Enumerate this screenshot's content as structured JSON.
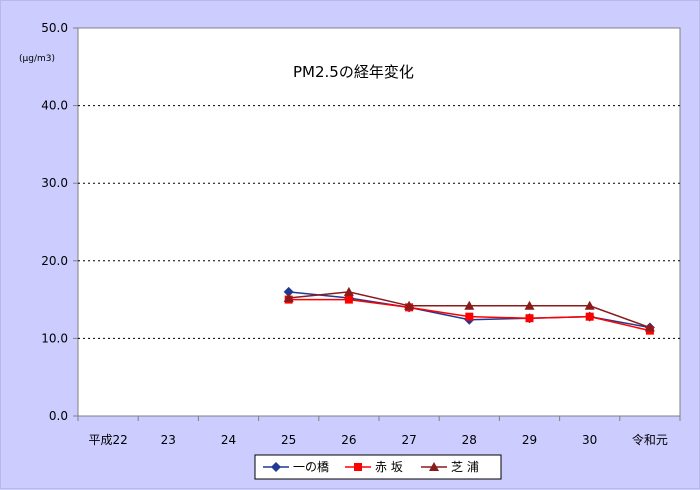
{
  "chart_data": {
    "type": "line",
    "title": "PM2.5の経年変化",
    "unit_label": "(μg/m3)",
    "categories": [
      "平成22",
      "23",
      "24",
      "25",
      "26",
      "27",
      "28",
      "29",
      "30",
      "令和元"
    ],
    "ylim": [
      0,
      50
    ],
    "yticks": [
      "0.0",
      "10.0",
      "20.0",
      "30.0",
      "40.0",
      "50.0"
    ],
    "grid": "horizontal dotted",
    "legend_position": "bottom",
    "series": [
      {
        "name": "一の橋",
        "color": "#1f3a93",
        "marker": "diamond",
        "values": [
          null,
          null,
          null,
          16.0,
          15.2,
          14.0,
          12.4,
          12.6,
          12.8,
          11.4
        ]
      },
      {
        "name": "赤 坂",
        "color": "#ff0000",
        "marker": "square",
        "values": [
          null,
          null,
          null,
          15.0,
          15.0,
          14.0,
          12.8,
          12.6,
          12.8,
          11.0
        ]
      },
      {
        "name": "芝 浦",
        "color": "#8b1a1a",
        "marker": "triangle",
        "values": [
          null,
          null,
          null,
          15.2,
          16.0,
          14.2,
          14.2,
          14.2,
          14.2,
          11.4
        ]
      }
    ]
  }
}
